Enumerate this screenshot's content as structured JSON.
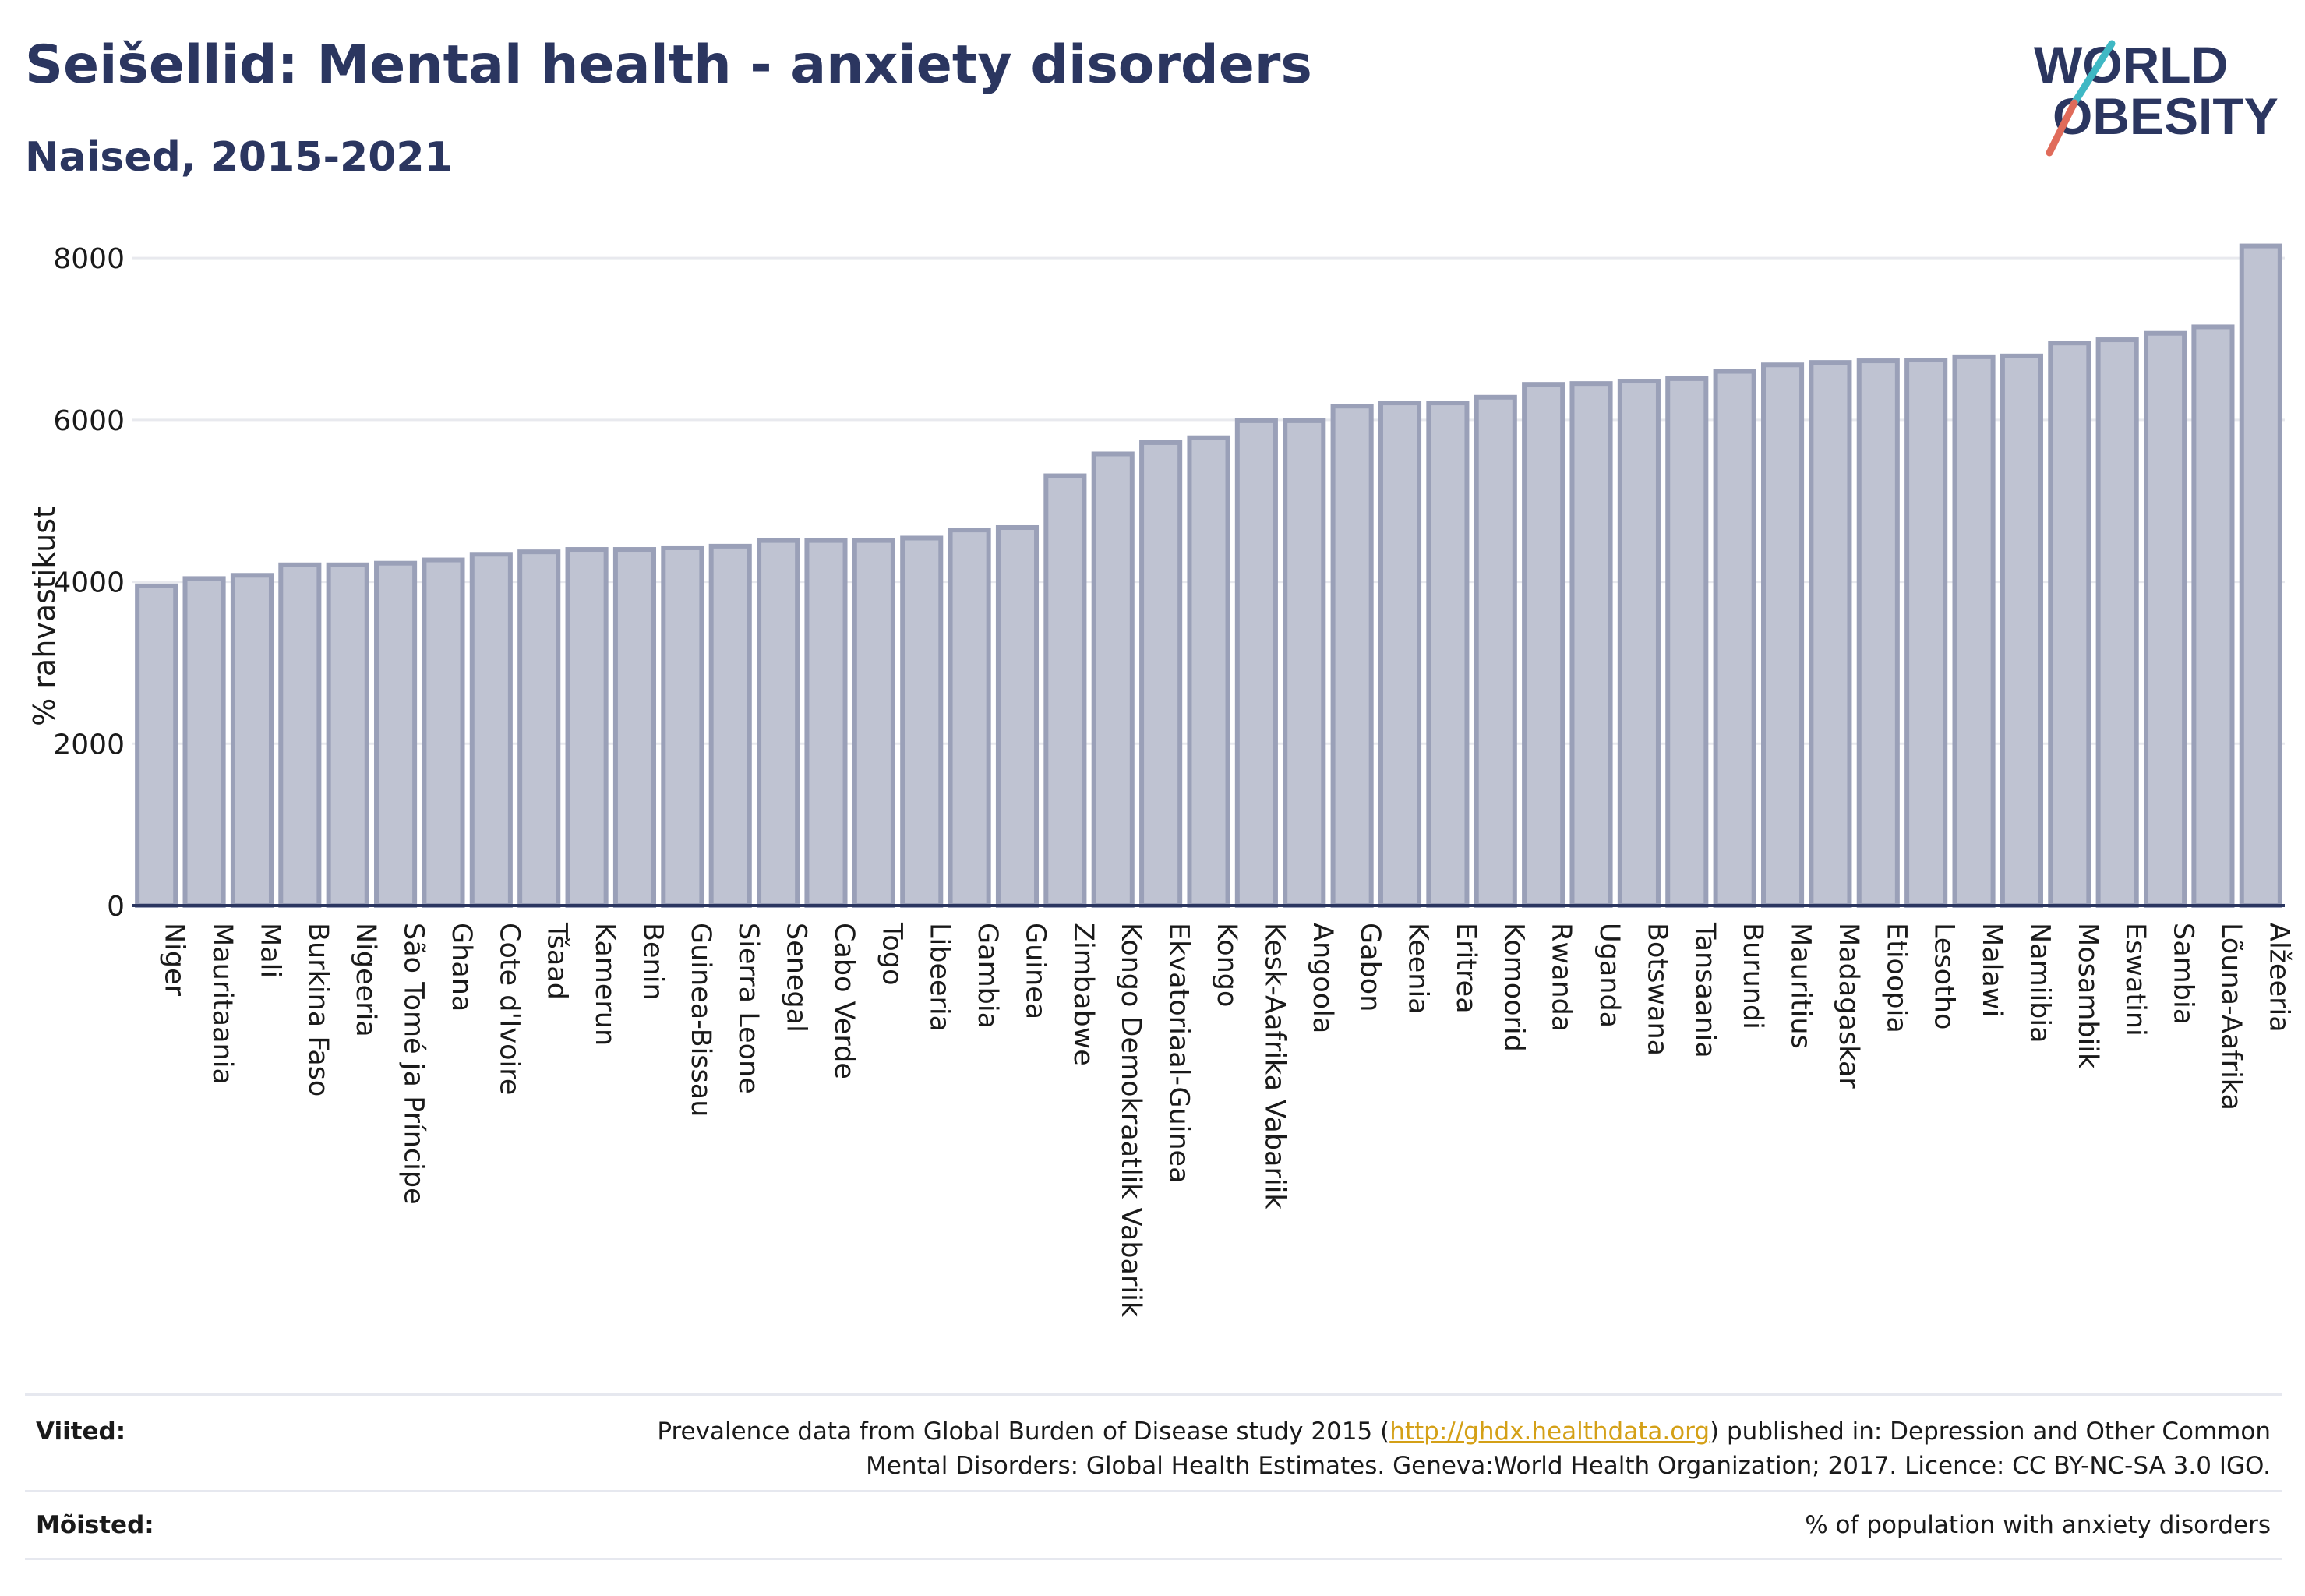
{
  "header": {
    "title": "Seišellid: Mental health - anxiety disorders",
    "subtitle": "Naised, 2015-2021"
  },
  "logo": {
    "line1": "WORLD",
    "line2": "OBESITY"
  },
  "colors": {
    "bar_fill": "#bfc3d2",
    "bar_stroke": "#9aa0b8",
    "title": "#2b3660",
    "accent_teal": "#3fb8c4",
    "accent_red": "#e06b5a",
    "link": "#d4a017"
  },
  "chart_data": {
    "type": "bar",
    "ylabel": "% rahvastikust",
    "ylim": [
      0,
      8300
    ],
    "yticks": [
      0,
      2000,
      4000,
      6000,
      8000
    ],
    "grid": true,
    "categories": [
      "Niger",
      "Mauritaania",
      "Mali",
      "Burkina Faso",
      "Nigeeria",
      "São Tomé ja Príncipe",
      "Ghana",
      "Cote d'Ivoire",
      "Tšaad",
      "Kamerun",
      "Benin",
      "Guinea-Bissau",
      "Sierra Leone",
      "Senegal",
      "Cabo Verde",
      "Togo",
      "Libeeria",
      "Gambia",
      "Guinea",
      "Zimbabwe",
      "Kongo Demokraatlik Vabariik",
      "Ekvatoriaal-Guinea",
      "Kongo",
      "Kesk-Aafrika Vabariik",
      "Angoola",
      "Gabon",
      "Keenia",
      "Eritrea",
      "Komoorid",
      "Rwanda",
      "Uganda",
      "Botswana",
      "Tansaania",
      "Burundi",
      "Mauritius",
      "Madagaskar",
      "Etioopia",
      "Lesotho",
      "Malawi",
      "Namiibia",
      "Mosambiik",
      "Eswatini",
      "Sambia",
      "Lõuna-Aafrika",
      "Alžeeria"
    ],
    "values": [
      3950,
      4040,
      4080,
      4210,
      4210,
      4230,
      4270,
      4340,
      4370,
      4400,
      4400,
      4420,
      4440,
      4510,
      4510,
      4510,
      4540,
      4640,
      4670,
      5310,
      5580,
      5720,
      5780,
      5990,
      5990,
      6170,
      6210,
      6210,
      6280,
      6440,
      6450,
      6480,
      6510,
      6600,
      6680,
      6710,
      6730,
      6740,
      6780,
      6790,
      6950,
      6990,
      7070,
      7150,
      8150
    ]
  },
  "footer": {
    "sources_label": "Viited:",
    "sources_line1_pre": "Prevalence data from Global Burden of Disease study 2015 (",
    "sources_link": "http://ghdx.healthdata.org",
    "sources_line1_post": ") published in: Depression and Other Common",
    "sources_line2": "Mental Disorders: Global Health Estimates. Geneva:World Health Organization; 2017. Licence: CC BY-NC-SA 3.0 IGO.",
    "definitions_label": "Mõisted:",
    "definitions_text": "% of population with anxiety disorders"
  }
}
